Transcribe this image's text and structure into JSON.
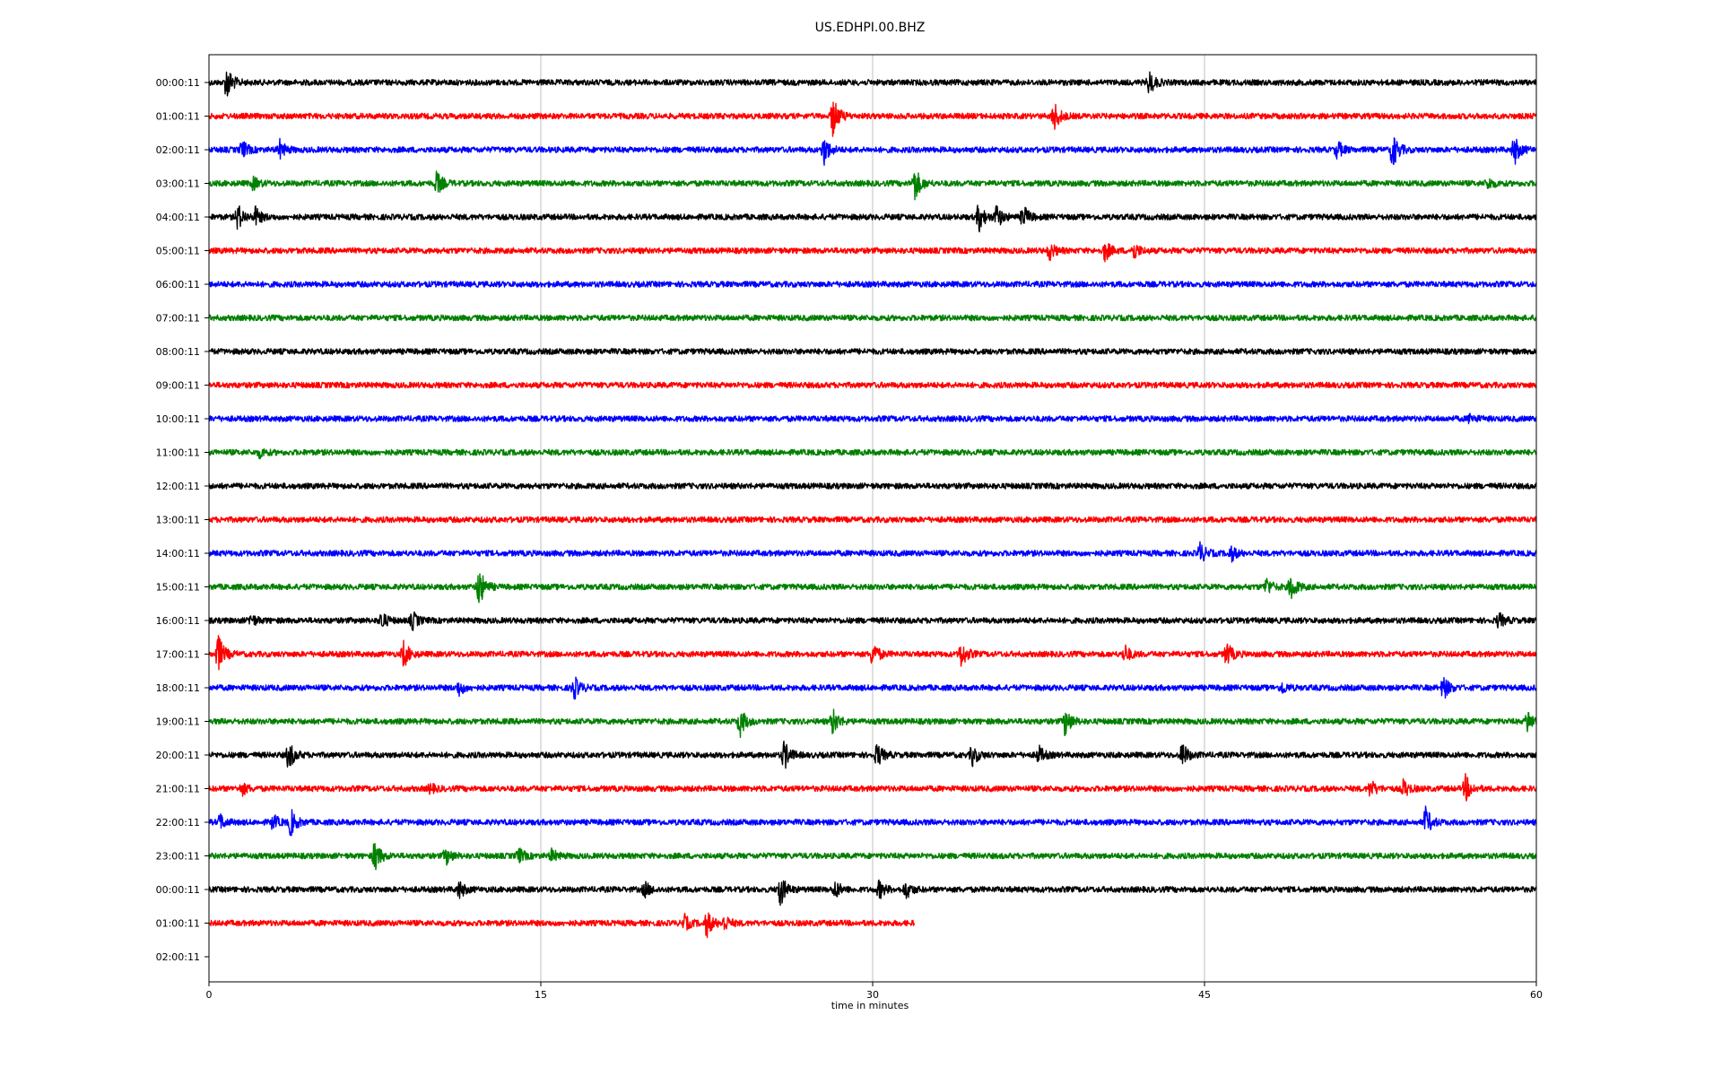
{
  "chart_data": {
    "type": "line",
    "title": "US.EDHPI.00.BHZ",
    "xlabel": "time in minutes",
    "ylabel": "",
    "xlim": [
      0,
      60
    ],
    "x_ticks": [
      "0",
      "15",
      "30",
      "45",
      "60"
    ],
    "grid": "vertical",
    "trace_colors": [
      "#000000",
      "#ff0000",
      "#0000ff",
      "#008000"
    ],
    "rows": [
      {
        "label": "00:00:11",
        "end_minute": 60,
        "events": [
          [
            0.8,
            1.2
          ],
          [
            42.5,
            0.8
          ]
        ]
      },
      {
        "label": "01:00:11",
        "end_minute": 60,
        "events": [
          [
            28.2,
            1.4
          ],
          [
            38.2,
            1.0
          ]
        ]
      },
      {
        "label": "02:00:11",
        "end_minute": 60,
        "events": [
          [
            1.5,
            0.6
          ],
          [
            3.2,
            0.6
          ],
          [
            27.8,
            1.0
          ],
          [
            51,
            0.6
          ],
          [
            53.5,
            1.3
          ],
          [
            59,
            1.0
          ]
        ]
      },
      {
        "label": "03:00:11",
        "end_minute": 60,
        "events": [
          [
            2.0,
            0.4
          ],
          [
            10.3,
            0.8
          ],
          [
            31.9,
            1.2
          ],
          [
            57.8,
            0.4
          ]
        ]
      },
      {
        "label": "04:00:11",
        "end_minute": 60,
        "events": [
          [
            1.3,
            0.9
          ],
          [
            2.1,
            0.6
          ],
          [
            34.8,
            1.0
          ],
          [
            35.6,
            0.8
          ],
          [
            36.8,
            0.8
          ]
        ]
      },
      {
        "label": "05:00:11",
        "end_minute": 60,
        "events": [
          [
            38.0,
            0.6
          ],
          [
            40.5,
            0.7
          ],
          [
            41.8,
            0.6
          ]
        ]
      },
      {
        "label": "06:00:11",
        "end_minute": 60,
        "events": []
      },
      {
        "label": "07:00:11",
        "end_minute": 60,
        "events": []
      },
      {
        "label": "08:00:11",
        "end_minute": 60,
        "events": []
      },
      {
        "label": "09:00:11",
        "end_minute": 60,
        "events": []
      },
      {
        "label": "10:00:11",
        "end_minute": 60,
        "events": [
          [
            57.0,
            0.3
          ]
        ]
      },
      {
        "label": "11:00:11",
        "end_minute": 60,
        "events": [
          [
            2.3,
            0.3
          ]
        ]
      },
      {
        "label": "12:00:11",
        "end_minute": 60,
        "events": []
      },
      {
        "label": "13:00:11",
        "end_minute": 60,
        "events": []
      },
      {
        "label": "14:00:11",
        "end_minute": 60,
        "events": [
          [
            44.8,
            0.7
          ],
          [
            46.2,
            0.5
          ]
        ]
      },
      {
        "label": "15:00:11",
        "end_minute": 60,
        "events": [
          [
            12.2,
            1.4
          ],
          [
            47.8,
            0.6
          ],
          [
            48.9,
            0.9
          ]
        ]
      },
      {
        "label": "16:00:11",
        "end_minute": 60,
        "events": [
          [
            1.9,
            0.4
          ],
          [
            7.8,
            0.6
          ],
          [
            9.2,
            0.6
          ],
          [
            58.3,
            0.5
          ]
        ]
      },
      {
        "label": "17:00:11",
        "end_minute": 60,
        "events": [
          [
            0.4,
            1.4
          ],
          [
            8.8,
            0.9
          ],
          [
            30.0,
            0.9
          ],
          [
            34.0,
            0.9
          ],
          [
            41.4,
            0.6
          ],
          [
            46.0,
            0.8
          ]
        ]
      },
      {
        "label": "18:00:11",
        "end_minute": 60,
        "events": [
          [
            11.3,
            0.5
          ],
          [
            16.5,
            0.8
          ],
          [
            48.5,
            0.4
          ],
          [
            55.8,
            0.8
          ]
        ]
      },
      {
        "label": "19:00:11",
        "end_minute": 60,
        "events": [
          [
            24.0,
            1.0
          ],
          [
            28.2,
            0.9
          ],
          [
            38.7,
            1.0
          ],
          [
            59.6,
            0.8
          ]
        ]
      },
      {
        "label": "20:00:11",
        "end_minute": 60,
        "events": [
          [
            3.6,
            1.0
          ],
          [
            26.0,
            1.0
          ],
          [
            30.2,
            0.8
          ],
          [
            34.5,
            0.7
          ],
          [
            37.5,
            0.6
          ],
          [
            44.0,
            0.8
          ]
        ]
      },
      {
        "label": "21:00:11",
        "end_minute": 60,
        "events": [
          [
            1.5,
            0.4
          ],
          [
            10.0,
            0.3
          ],
          [
            52.5,
            0.6
          ],
          [
            54.0,
            0.6
          ],
          [
            56.8,
            0.9
          ]
        ]
      },
      {
        "label": "22:00:11",
        "end_minute": 60,
        "events": [
          [
            0.5,
            0.5
          ],
          [
            3.7,
            0.9
          ],
          [
            2.9,
            0.5
          ],
          [
            55.0,
            1.0
          ]
        ]
      },
      {
        "label": "23:00:11",
        "end_minute": 60,
        "events": [
          [
            7.5,
            1.1
          ],
          [
            10.7,
            0.6
          ],
          [
            14.0,
            0.5
          ],
          [
            15.5,
            0.4
          ]
        ]
      },
      {
        "label": "00:00:11",
        "end_minute": 60,
        "events": [
          [
            11.3,
            0.6
          ],
          [
            19.7,
            0.5
          ],
          [
            25.8,
            1.2
          ],
          [
            28.3,
            0.6
          ],
          [
            30.3,
            0.6
          ],
          [
            31.5,
            0.6
          ]
        ]
      },
      {
        "label": "01:00:11",
        "end_minute": 31.9,
        "events": [
          [
            21.5,
            0.5
          ],
          [
            22.5,
            0.9
          ],
          [
            23.3,
            0.5
          ]
        ]
      },
      {
        "label": "02:00:11",
        "end_minute": 0,
        "events": []
      }
    ]
  }
}
